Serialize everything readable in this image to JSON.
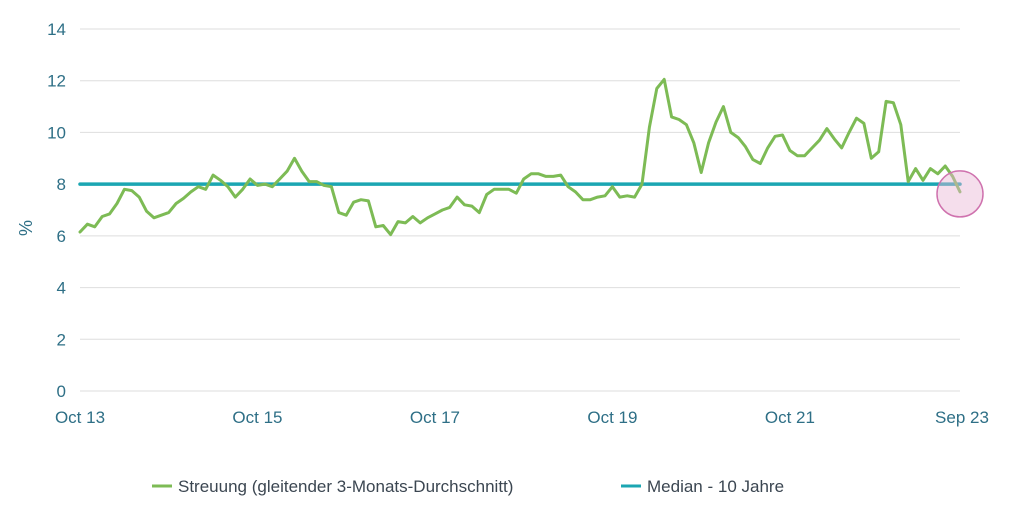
{
  "chart_data": {
    "type": "line",
    "title": "",
    "xlabel": "",
    "ylabel": "%",
    "ylim": [
      0,
      14
    ],
    "yticks": [
      0,
      2,
      4,
      6,
      8,
      10,
      12,
      14
    ],
    "grid": true,
    "legend_position": "bottom",
    "x_ticks": [
      {
        "label": "Oct 13",
        "x": "2013-10"
      },
      {
        "label": "Oct 15",
        "x": "2015-10"
      },
      {
        "label": "Oct 17",
        "x": "2017-10"
      },
      {
        "label": "Oct 19",
        "x": "2019-10"
      },
      {
        "label": "Oct 21",
        "x": "2021-10"
      },
      {
        "label": "Sep 23",
        "x": "2023-09"
      }
    ],
    "xlim": [
      "2013-10",
      "2023-09"
    ],
    "highlight": {
      "x": "2023-09",
      "y": 7.7,
      "color": "#e8b6d4"
    },
    "series": [
      {
        "name": "Streuung (gleitender 3-Monats-Durchschnitt)",
        "color": "#7dbb55",
        "points": [
          [
            "2013-10",
            6.15
          ],
          [
            "2013-11",
            6.45
          ],
          [
            "2013-12",
            6.35
          ],
          [
            "2014-01",
            6.75
          ],
          [
            "2014-02",
            6.85
          ],
          [
            "2014-03",
            7.25
          ],
          [
            "2014-04",
            7.8
          ],
          [
            "2014-05",
            7.75
          ],
          [
            "2014-06",
            7.5
          ],
          [
            "2014-07",
            6.95
          ],
          [
            "2014-08",
            6.7
          ],
          [
            "2014-09",
            6.8
          ],
          [
            "2014-10",
            6.9
          ],
          [
            "2014-11",
            7.25
          ],
          [
            "2014-12",
            7.45
          ],
          [
            "2015-01",
            7.7
          ],
          [
            "2015-02",
            7.9
          ],
          [
            "2015-03",
            7.8
          ],
          [
            "2015-04",
            8.35
          ],
          [
            "2015-05",
            8.15
          ],
          [
            "2015-06",
            7.9
          ],
          [
            "2015-07",
            7.5
          ],
          [
            "2015-08",
            7.8
          ],
          [
            "2015-09",
            8.2
          ],
          [
            "2015-10",
            7.95
          ],
          [
            "2015-11",
            8.0
          ],
          [
            "2015-12",
            7.9
          ],
          [
            "2016-01",
            8.2
          ],
          [
            "2016-02",
            8.5
          ],
          [
            "2016-03",
            9.0
          ],
          [
            "2016-04",
            8.5
          ],
          [
            "2016-05",
            8.1
          ],
          [
            "2016-06",
            8.1
          ],
          [
            "2016-07",
            7.95
          ],
          [
            "2016-08",
            7.9
          ],
          [
            "2016-09",
            6.9
          ],
          [
            "2016-10",
            6.8
          ],
          [
            "2016-11",
            7.3
          ],
          [
            "2016-12",
            7.4
          ],
          [
            "2017-01",
            7.35
          ],
          [
            "2017-02",
            6.35
          ],
          [
            "2017-03",
            6.4
          ],
          [
            "2017-04",
            6.05
          ],
          [
            "2017-05",
            6.55
          ],
          [
            "2017-06",
            6.5
          ],
          [
            "2017-07",
            6.75
          ],
          [
            "2017-08",
            6.5
          ],
          [
            "2017-09",
            6.7
          ],
          [
            "2017-10",
            6.85
          ],
          [
            "2017-11",
            7.0
          ],
          [
            "2017-12",
            7.1
          ],
          [
            "2018-01",
            7.5
          ],
          [
            "2018-02",
            7.2
          ],
          [
            "2018-03",
            7.15
          ],
          [
            "2018-04",
            6.9
          ],
          [
            "2018-05",
            7.6
          ],
          [
            "2018-06",
            7.8
          ],
          [
            "2018-07",
            7.8
          ],
          [
            "2018-08",
            7.8
          ],
          [
            "2018-09",
            7.65
          ],
          [
            "2018-10",
            8.2
          ],
          [
            "2018-11",
            8.4
          ],
          [
            "2018-12",
            8.4
          ],
          [
            "2019-01",
            8.3
          ],
          [
            "2019-02",
            8.3
          ],
          [
            "2019-03",
            8.35
          ],
          [
            "2019-04",
            7.9
          ],
          [
            "2019-05",
            7.7
          ],
          [
            "2019-06",
            7.4
          ],
          [
            "2019-07",
            7.4
          ],
          [
            "2019-08",
            7.5
          ],
          [
            "2019-09",
            7.55
          ],
          [
            "2019-10",
            7.9
          ],
          [
            "2019-11",
            7.5
          ],
          [
            "2019-12",
            7.55
          ],
          [
            "2020-01",
            7.5
          ],
          [
            "2020-02",
            8.0
          ],
          [
            "2020-03",
            10.2
          ],
          [
            "2020-04",
            11.7
          ],
          [
            "2020-05",
            12.05
          ],
          [
            "2020-06",
            10.6
          ],
          [
            "2020-07",
            10.5
          ],
          [
            "2020-08",
            10.3
          ],
          [
            "2020-09",
            9.6
          ],
          [
            "2020-10",
            8.45
          ],
          [
            "2020-11",
            9.6
          ],
          [
            "2020-12",
            10.4
          ],
          [
            "2021-01",
            11.0
          ],
          [
            "2021-02",
            10.0
          ],
          [
            "2021-03",
            9.8
          ],
          [
            "2021-04",
            9.45
          ],
          [
            "2021-05",
            8.95
          ],
          [
            "2021-06",
            8.8
          ],
          [
            "2021-07",
            9.4
          ],
          [
            "2021-08",
            9.85
          ],
          [
            "2021-09",
            9.9
          ],
          [
            "2021-10",
            9.3
          ],
          [
            "2021-11",
            9.1
          ],
          [
            "2021-12",
            9.1
          ],
          [
            "2022-01",
            9.4
          ],
          [
            "2022-02",
            9.7
          ],
          [
            "2022-03",
            10.15
          ],
          [
            "2022-04",
            9.75
          ],
          [
            "2022-05",
            9.4
          ],
          [
            "2022-06",
            10.0
          ],
          [
            "2022-07",
            10.55
          ],
          [
            "2022-08",
            10.35
          ],
          [
            "2022-09",
            9.0
          ],
          [
            "2022-10",
            9.25
          ],
          [
            "2022-11",
            11.2
          ],
          [
            "2022-12",
            11.15
          ],
          [
            "2023-01",
            10.3
          ],
          [
            "2023-02",
            8.1
          ],
          [
            "2023-03",
            8.6
          ],
          [
            "2023-04",
            8.15
          ],
          [
            "2023-05",
            8.6
          ],
          [
            "2023-06",
            8.4
          ],
          [
            "2023-07",
            8.7
          ],
          [
            "2023-08",
            8.3
          ],
          [
            "2023-09",
            7.7
          ]
        ]
      },
      {
        "name": "Median - 10 Jahre",
        "color": "#1ba6b2",
        "points": [
          [
            "2013-10",
            8.0
          ],
          [
            "2023-09",
            8.0
          ]
        ]
      }
    ]
  }
}
